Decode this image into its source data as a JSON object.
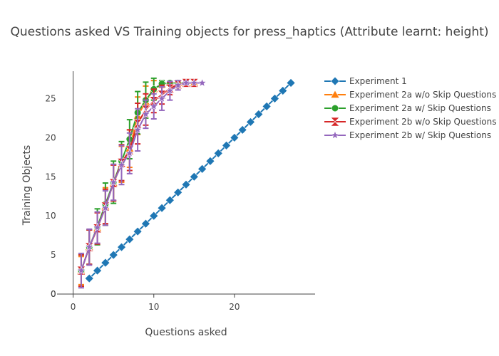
{
  "chart_data": {
    "type": "line",
    "title": "Questions asked VS Training objects for press_haptics (Attribute learnt: height)",
    "xlabel": "Questions asked",
    "ylabel": "Training Objects",
    "xlim": [
      -2,
      30
    ],
    "ylim": [
      0,
      28.5
    ],
    "x_ticks": [
      0,
      10,
      20
    ],
    "y_ticks": [
      0,
      5,
      10,
      15,
      20,
      25
    ],
    "grid": false,
    "legend_position": "top-right",
    "series": [
      {
        "name": "Experiment 1",
        "color": "#1f77b4",
        "marker": "diamond",
        "x": [
          2,
          3,
          4,
          5,
          6,
          7,
          8,
          9,
          10,
          11,
          12,
          13,
          14,
          15,
          16,
          17,
          18,
          19,
          20,
          21,
          22,
          23,
          24,
          25,
          26,
          27
        ],
        "y": [
          2,
          3,
          4,
          5,
          6,
          7,
          8,
          9,
          10,
          11,
          12,
          13,
          14,
          15,
          16,
          17,
          18,
          19,
          20,
          21,
          22,
          23,
          24,
          25,
          26,
          27
        ],
        "error": null
      },
      {
        "name": "Experiment 2a w/o Skip Questions",
        "color": "#ff7f0e",
        "marker": "triangle-up",
        "x": [
          1,
          2,
          3,
          4,
          5,
          6,
          7,
          8,
          9,
          10,
          11,
          12,
          13,
          14,
          15
        ],
        "y": [
          3,
          6,
          8.4,
          11.2,
          14.2,
          16.6,
          18.6,
          22.8,
          24.6,
          26.2,
          26.8,
          27,
          27,
          27,
          27
        ],
        "error": [
          1.8,
          2.2,
          2.0,
          2.4,
          2.3,
          2.3,
          2.4,
          2.4,
          2.0,
          1.1,
          0.4,
          0.2,
          0.1,
          0,
          0
        ]
      },
      {
        "name": "Experiment 2a w/ Skip Questions",
        "color": "#2ca02c",
        "marker": "circle",
        "x": [
          1,
          2,
          3,
          4,
          5,
          6,
          7,
          8,
          9,
          10,
          11,
          12,
          13,
          14
        ],
        "y": [
          3,
          6,
          8.6,
          11.5,
          14.3,
          17,
          19.8,
          23.2,
          24.8,
          26.2,
          26.9,
          27,
          27,
          27
        ],
        "error": [
          2.0,
          2.2,
          2.3,
          2.7,
          2.7,
          2.5,
          2.5,
          2.7,
          2.3,
          1.4,
          0.4,
          0.2,
          0,
          0
        ]
      },
      {
        "name": "Experiment 2b w/o Skip Questions",
        "color": "#d62728",
        "marker": "hourglass",
        "x": [
          1,
          2,
          3,
          4,
          5,
          6,
          7,
          8,
          9,
          10,
          11,
          12,
          13,
          14,
          15
        ],
        "y": [
          3,
          6,
          8.4,
          11.2,
          14.2,
          16.8,
          18.4,
          21.8,
          23.6,
          24.7,
          25.5,
          26.3,
          26.8,
          27,
          27
        ],
        "error": [
          2.0,
          2.2,
          2.0,
          2.2,
          2.3,
          2.3,
          2.6,
          2.6,
          2.0,
          1.5,
          1.2,
          0.8,
          0.3,
          0,
          0
        ]
      },
      {
        "name": "Experiment 2b w/ Skip Questions",
        "color": "#9467bd",
        "marker": "star",
        "x": [
          1,
          2,
          3,
          4,
          5,
          6,
          7,
          8,
          9,
          10,
          11,
          12,
          13,
          14,
          15,
          16
        ],
        "y": [
          3,
          6,
          8.5,
          11,
          14.3,
          16.5,
          18,
          21,
          23,
          24,
          25,
          26,
          26.7,
          27,
          27,
          27
        ],
        "error": [
          2.2,
          2.3,
          2.0,
          2.2,
          2.3,
          2.5,
          2.6,
          2.7,
          1.8,
          1.6,
          1.5,
          1.2,
          0.6,
          0.2,
          0,
          0
        ]
      }
    ]
  }
}
